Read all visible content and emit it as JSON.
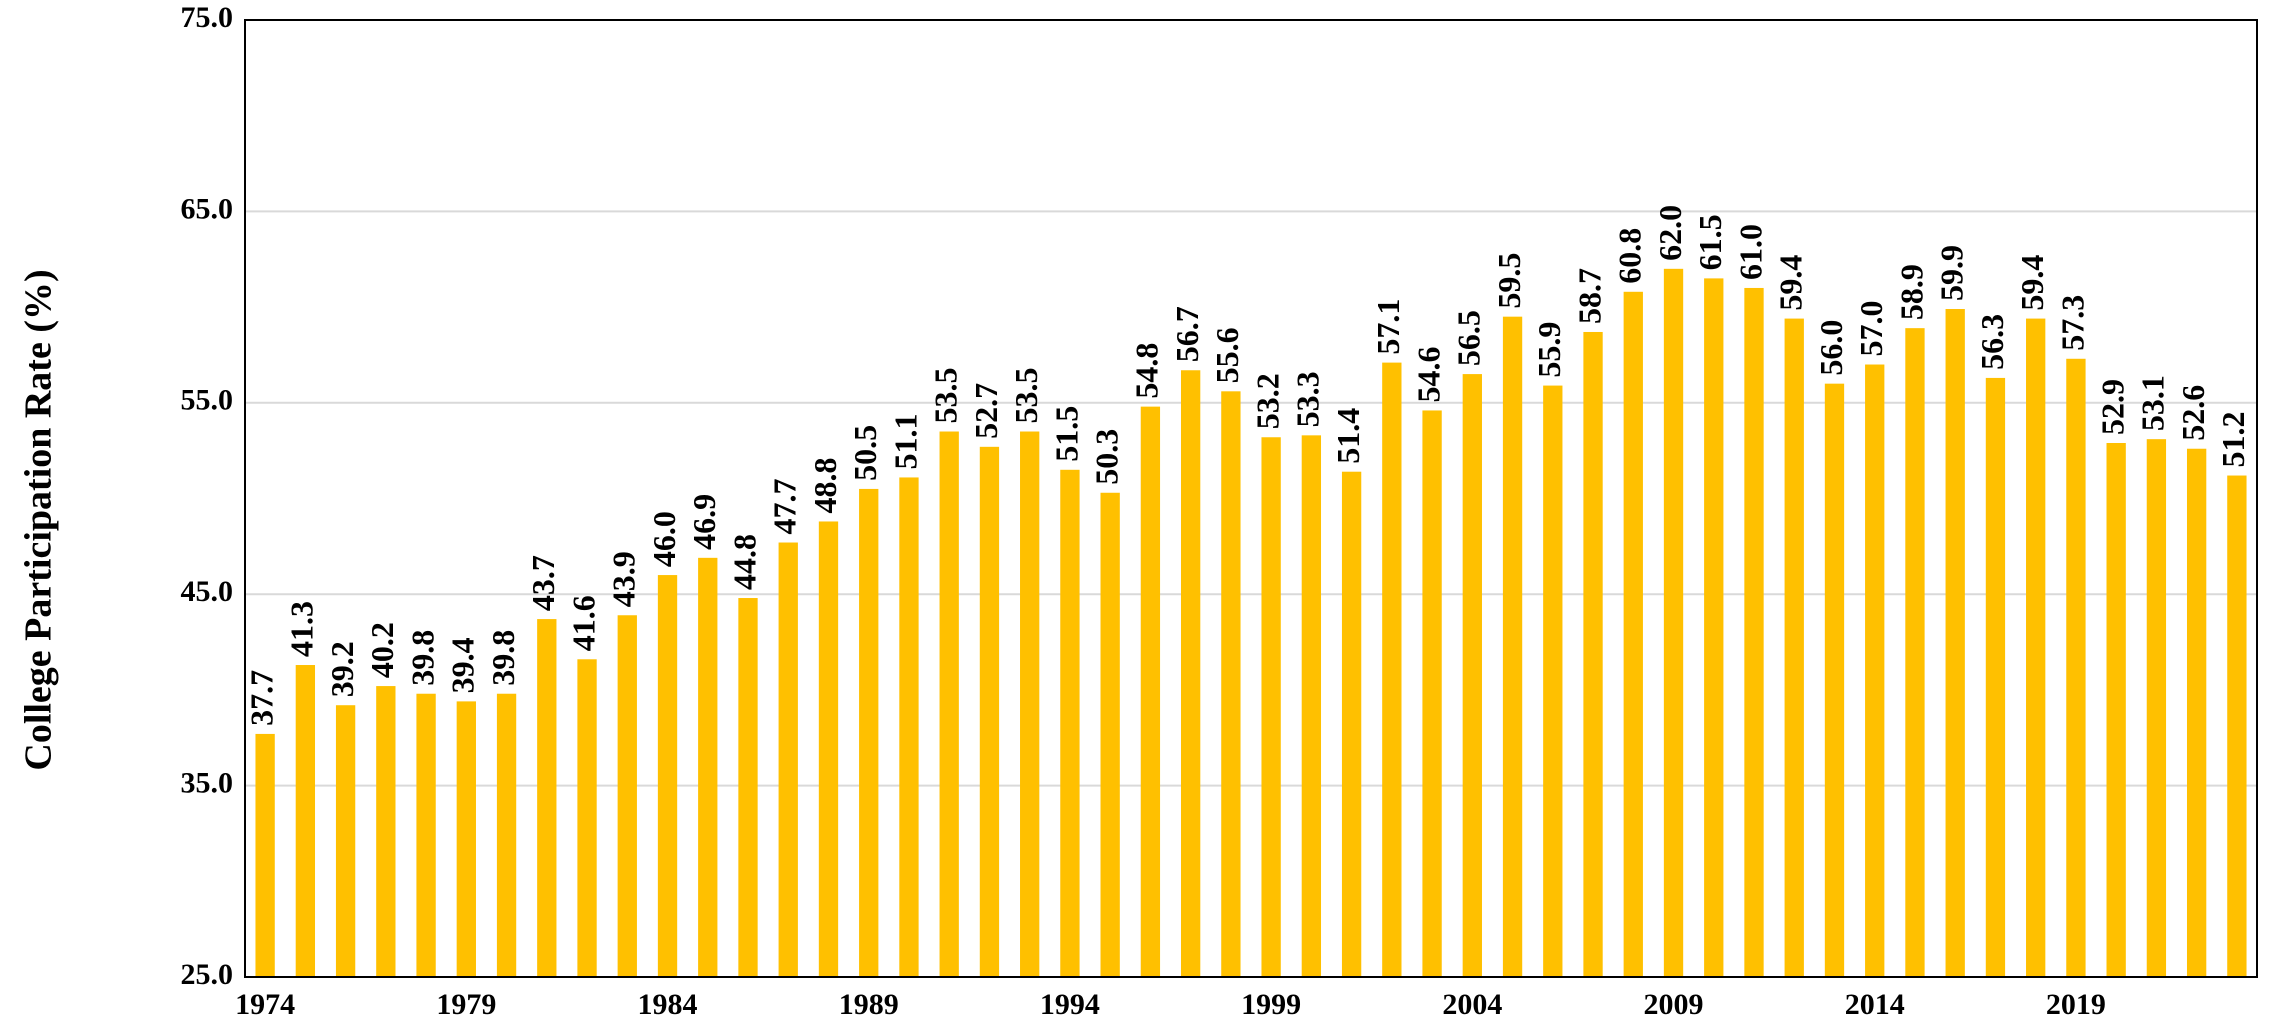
{
  "chart_data": {
    "type": "bar",
    "y_label": "College Participation Rate (%)",
    "categories": [
      "1974",
      null,
      null,
      null,
      null,
      "1979",
      null,
      null,
      null,
      null,
      "1984",
      null,
      null,
      null,
      null,
      "1989",
      null,
      null,
      null,
      null,
      "1994",
      null,
      null,
      null,
      null,
      "1999",
      null,
      null,
      null,
      null,
      "2004",
      null,
      null,
      null,
      null,
      "2009",
      null,
      null,
      null,
      null,
      "2014",
      null,
      null,
      null,
      null,
      "2019",
      null,
      null,
      null,
      null
    ],
    "values": [
      37.7,
      41.3,
      39.2,
      40.2,
      39.8,
      39.4,
      39.8,
      43.7,
      41.6,
      43.9,
      46.0,
      46.9,
      44.8,
      47.7,
      48.8,
      50.5,
      51.1,
      53.5,
      52.7,
      53.5,
      51.5,
      50.3,
      54.8,
      56.7,
      55.6,
      53.2,
      53.3,
      51.4,
      57.1,
      54.6,
      56.5,
      59.5,
      55.9,
      58.7,
      60.8,
      62.0,
      61.5,
      61.0,
      59.4,
      56.0,
      57.0,
      58.9,
      59.9,
      56.3,
      59.4,
      57.3,
      52.9,
      53.1,
      52.6,
      51.2
    ],
    "value_labels": [
      "37.7",
      "41.3",
      "39.2",
      "40.2",
      "39.8",
      "39.4",
      "39.8",
      "43.7",
      "41.6",
      "43.9",
      "46.0",
      "46.9",
      "44.8",
      "47.7",
      "48.8",
      "50.5",
      "51.1",
      "53.5",
      "52.7",
      "53.5",
      "51.5",
      "50.3",
      "54.8",
      "56.7",
      "55.6",
      "53.2",
      "53.3",
      "51.4",
      "57.1",
      "54.6",
      "56.5",
      "59.5",
      "55.9",
      "58.7",
      "60.8",
      "62.0",
      "61.5",
      "61.0",
      "59.4",
      "56.0",
      "57.0",
      "58.9",
      "59.9",
      "56.3",
      "59.4",
      "57.3",
      "52.9",
      "53.1",
      "52.6",
      "51.2"
    ],
    "color": "#ffc000",
    "ylim": [
      25,
      75
    ],
    "yticks": [
      {
        "value": 25,
        "label": "25.0"
      },
      {
        "value": 35,
        "label": "35.0"
      },
      {
        "value": 45,
        "label": "45.0"
      },
      {
        "value": 55,
        "label": "55.0"
      },
      {
        "value": 65,
        "label": "65.0"
      },
      {
        "value": 75,
        "label": "75.0"
      }
    ],
    "grid": true
  }
}
